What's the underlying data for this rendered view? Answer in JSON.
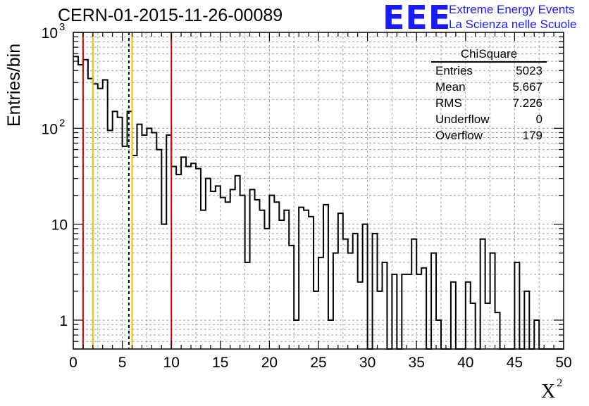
{
  "header": {
    "title": "CERN-01-2015-11-26-00089",
    "logo_text": "EEE",
    "logo_line1": "Extreme Energy Events",
    "logo_line2": "La Scienza nelle Scuole"
  },
  "stats": {
    "title": "ChiSquare",
    "rows": [
      {
        "label": "Entries",
        "value": "5023"
      },
      {
        "label": "Mean",
        "value": "5.667"
      },
      {
        "label": "RMS",
        "value": "7.226"
      },
      {
        "label": "Underflow",
        "value": "0"
      },
      {
        "label": "Overflow",
        "value": "179"
      }
    ]
  },
  "chart_data": {
    "type": "histogram",
    "title": "CERN-01-2015-11-26-00089",
    "xlabel": "X",
    "xlabel_sup": "2",
    "ylabel": "Entries/bin",
    "xlim": [
      0,
      50
    ],
    "ylim": [
      0.5,
      1000
    ],
    "yscale": "log",
    "grid": true,
    "bin_width": 0.5,
    "x_ticks": [
      "0",
      "5",
      "10",
      "15",
      "20",
      "25",
      "30",
      "35",
      "40",
      "45",
      "50"
    ],
    "y_ticks": [
      {
        "value": 1,
        "label": "1"
      },
      {
        "value": 10,
        "label": "10"
      },
      {
        "value": 100,
        "label": "10",
        "exp": "2"
      },
      {
        "value": 1000,
        "label": "10",
        "exp": "3"
      }
    ],
    "counts": [
      560,
      460,
      520,
      330,
      290,
      260,
      320,
      95,
      150,
      130,
      65,
      150,
      52,
      110,
      85,
      100,
      90,
      60,
      10,
      85,
      40,
      33,
      50,
      40,
      43,
      38,
      14,
      30,
      22,
      25,
      19,
      17,
      23,
      32,
      20,
      4,
      23,
      18,
      14,
      9,
      20,
      17,
      11,
      14,
      6,
      1,
      15,
      14,
      12,
      2,
      4.5,
      16,
      1,
      5,
      13,
      7,
      5,
      8,
      2.5,
      10,
      0,
      8,
      2,
      4,
      0,
      3,
      0,
      3,
      3,
      7,
      3,
      3.5,
      0,
      5,
      1,
      0,
      0,
      2.5,
      0,
      0,
      2.5,
      1.5,
      0,
      7,
      1.5,
      5,
      1.2,
      0,
      0.5,
      0.5,
      4,
      0,
      2,
      0,
      1,
      0,
      0,
      0,
      0,
      0
    ],
    "vertical_lines": [
      {
        "x": 1,
        "color": "#e00000",
        "style": "solid"
      },
      {
        "x": 2,
        "color": "#f0c000",
        "style": "solid"
      },
      {
        "x": 5.667,
        "color": "#000000",
        "style": "dashed"
      },
      {
        "x": 6,
        "color": "#f0c000",
        "style": "solid"
      },
      {
        "x": 10,
        "color": "#e00000",
        "style": "solid"
      }
    ]
  }
}
